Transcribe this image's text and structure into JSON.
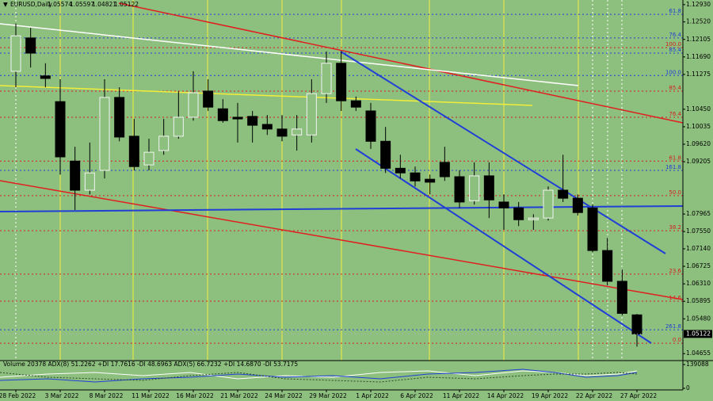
{
  "chart_data": {
    "type": "candlestick",
    "symbol": "EURUSD,Daily",
    "categories": [
      "28 Feb 2022",
      null,
      null,
      "3 Mar 2022",
      null,
      null,
      "8 Mar 2022",
      null,
      null,
      "11 Mar 2022",
      null,
      null,
      "16 Mar 2022",
      null,
      null,
      "21 Mar 2022",
      null,
      null,
      "24 Mar 2022",
      null,
      null,
      "29 Mar 2022",
      null,
      null,
      "1 Apr 2022",
      null,
      null,
      "6 Apr 2022",
      null,
      null,
      "11 Apr 2022",
      null,
      null,
      "14 Apr 2022",
      null,
      null,
      "19 Apr 2022",
      null,
      null,
      "22 Apr 2022",
      null,
      null,
      "27 Apr 2022"
    ],
    "open": [
      1.1135,
      1.1214,
      1.1124,
      1.1063,
      1.0922,
      1.0853,
      1.09,
      1.1073,
      1.0981,
      1.0913,
      1.0947,
      1.0981,
      1.1026,
      1.1088,
      1.1046,
      1.1026,
      1.1028,
      1.1009,
      1.0998,
      1.0984,
      1.0984,
      1.1082,
      1.1154,
      1.1065,
      1.1041,
      1.0969,
      1.0905,
      1.0894,
      1.0879,
      1.0919,
      1.0885,
      1.0828,
      1.0887,
      1.0825,
      1.0811,
      1.0783,
      1.0787,
      1.0853,
      1.0834,
      1.0811,
      1.071,
      1.0637,
      1.05574
    ],
    "high": [
      1.1248,
      1.1238,
      1.1154,
      1.1116,
      1.0956,
      1.0966,
      1.1116,
      1.1097,
      1.1022,
      1.0975,
      1.1022,
      1.1088,
      1.1135,
      1.1116,
      1.1069,
      1.106,
      1.1041,
      1.1031,
      1.1031,
      1.1031,
      1.1116,
      1.1182,
      1.1182,
      1.1075,
      1.106,
      1.1003,
      1.0937,
      1.0909,
      1.089,
      1.0956,
      1.09,
      1.0919,
      1.0919,
      1.0843,
      1.0825,
      1.0796,
      1.0862,
      1.0937,
      1.0843,
      1.0819,
      1.074,
      1.0665,
      1.05597
    ],
    "low": [
      1.1097,
      1.1144,
      1.1097,
      1.089,
      1.0806,
      1.0843,
      1.0881,
      1.0969,
      1.09,
      1.09,
      1.0937,
      1.0975,
      1.1018,
      1.1041,
      1.1013,
      1.0966,
      1.0966,
      1.0984,
      1.0969,
      1.0947,
      1.0966,
      1.106,
      1.1041,
      1.1041,
      1.0951,
      1.0894,
      1.0881,
      1.0862,
      1.0843,
      1.0875,
      1.0811,
      1.0819,
      1.0787,
      1.0759,
      1.0768,
      1.0759,
      1.0781,
      1.0825,
      1.0793,
      1.0706,
      1.0627,
      1.0556,
      1.04821
    ],
    "close": [
      1.1219,
      1.1178,
      1.1118,
      1.0932,
      1.0853,
      1.0894,
      1.1073,
      1.0979,
      1.0909,
      1.0943,
      1.0981,
      1.1026,
      1.1084,
      1.105,
      1.1018,
      1.1022,
      1.1007,
      1.0998,
      1.0981,
      1.0998,
      1.1082,
      1.1154,
      1.1065,
      1.105,
      1.0969,
      1.0905,
      1.0894,
      1.0875,
      1.0872,
      1.0885,
      1.0825,
      1.0887,
      1.083,
      1.0811,
      1.0783,
      1.0787,
      1.0853,
      1.0834,
      1.08,
      1.071,
      1.0637,
      1.0561,
      1.05122
    ],
    "up_color": "#8dbf7e",
    "down_color": "#000000",
    "ylim": [
      1.0449,
      1.1304
    ],
    "yticks": [
      {
        "value": 1.1293,
        "label": "1.12930"
      },
      {
        "value": 1.1252,
        "label": "1.12520"
      },
      1.12105,
      {
        "value": 1.1169,
        "label": "1.11690"
      },
      1.11275,
      {
        "value": 1.1045,
        "label": "1.10450"
      },
      1.10035,
      {
        "value": 1.0962,
        "label": "1.09620"
      },
      1.09205,
      1.07965,
      {
        "value": 1.0755,
        "label": "1.07550"
      },
      {
        "value": 1.0714,
        "label": "1.07140"
      },
      1.06725,
      {
        "value": 1.0631,
        "label": "1.06310"
      },
      1.05895,
      {
        "value": 1.0548,
        "label": "1.05480"
      },
      1.04655
    ],
    "fib_levels": [
      {
        "label": "61.8",
        "value": 1.127,
        "color": "#1f3fd6"
      },
      {
        "label": "76.4",
        "value": 1.1214,
        "color": "#1f3fd6"
      },
      {
        "label": "100.0",
        "value": 1.1191,
        "color": "#d42020"
      },
      {
        "label": "85.4",
        "value": 1.1178,
        "color": "#1f3fd6"
      },
      {
        "label": "100.0",
        "value": 1.1125,
        "color": "#1f3fd6"
      },
      {
        "label": "85.4",
        "value": 1.1088,
        "color": "#d42020"
      },
      {
        "label": "76.4",
        "value": 1.1026,
        "color": "#d42020"
      },
      {
        "label": "61.8",
        "value": 1.0922,
        "color": "#d42020"
      },
      {
        "label": "161.8",
        "value": 1.09,
        "color": "#1f3fd6"
      },
      {
        "label": "50.0",
        "value": 1.084,
        "color": "#d42020"
      },
      {
        "label": "38.2",
        "value": 1.0757,
        "color": "#d42020"
      },
      {
        "label": "23.6",
        "value": 1.0654,
        "color": "#d42020"
      },
      {
        "label": "14.6",
        "value": 1.059,
        "color": "#d42020"
      },
      {
        "label": "261.8",
        "value": 1.0522,
        "color": "#1f3fd6"
      },
      {
        "label": "0.0",
        "value": 1.049,
        "color": "#d42020"
      }
    ],
    "indicator_label": "Volume 20378  ADX(8) 51.2262 +DI 17.7616 -DI 48.6963  ADX(5) 66.7232 +DI 14.6870 -DI 53.7175",
    "indicator_ylim": [
      0,
      139088
    ],
    "indicator_yticks": [
      0,
      139088
    ]
  }
}
